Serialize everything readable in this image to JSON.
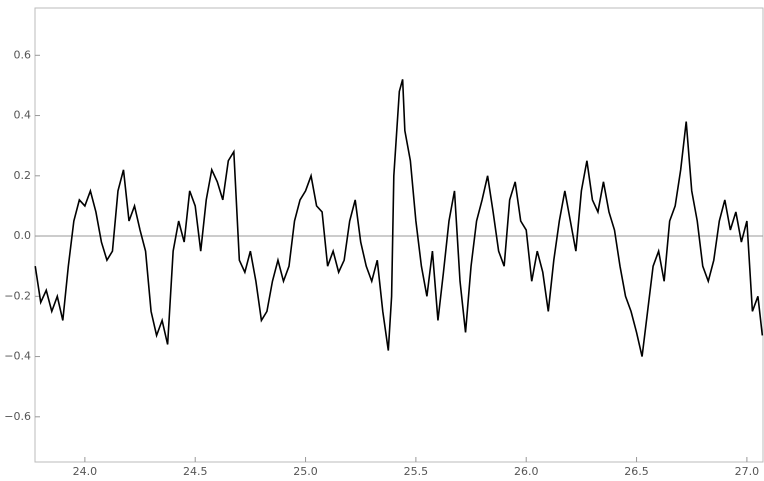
{
  "chart_data": {
    "type": "line",
    "x": [
      23.775,
      23.8,
      23.825,
      23.85,
      23.875,
      23.9,
      23.925,
      23.95,
      23.975,
      24.0,
      24.025,
      24.05,
      24.075,
      24.1,
      24.125,
      24.15,
      24.175,
      24.2,
      24.225,
      24.25,
      24.275,
      24.3,
      24.325,
      24.35,
      24.375,
      24.4,
      24.425,
      24.45,
      24.475,
      24.5,
      24.525,
      24.55,
      24.575,
      24.6,
      24.625,
      24.65,
      24.675,
      24.7,
      24.725,
      24.75,
      24.775,
      24.8,
      24.825,
      24.85,
      24.875,
      24.9,
      24.925,
      24.95,
      24.975,
      25.0,
      25.025,
      25.05,
      25.075,
      25.1,
      25.125,
      25.15,
      25.175,
      25.2,
      25.225,
      25.25,
      25.275,
      25.3,
      25.325,
      25.35,
      25.375,
      25.39,
      25.4,
      25.425,
      25.44,
      25.45,
      25.475,
      25.5,
      25.525,
      25.55,
      25.575,
      25.6,
      25.625,
      25.65,
      25.675,
      25.7,
      25.725,
      25.75,
      25.775,
      25.8,
      25.825,
      25.85,
      25.875,
      25.9,
      25.925,
      25.95,
      25.975,
      26.0,
      26.025,
      26.05,
      26.075,
      26.1,
      26.125,
      26.15,
      26.175,
      26.2,
      26.225,
      26.25,
      26.275,
      26.3,
      26.325,
      26.35,
      26.375,
      26.4,
      26.425,
      26.45,
      26.475,
      26.5,
      26.525,
      26.55,
      26.575,
      26.6,
      26.625,
      26.65,
      26.675,
      26.7,
      26.725,
      26.75,
      26.775,
      26.8,
      26.825,
      26.85,
      26.875,
      26.9,
      26.925,
      26.95,
      26.975,
      27.0,
      27.025,
      27.05,
      27.07
    ],
    "series": [
      {
        "color": "#000000",
        "values": [
          -0.1,
          -0.22,
          -0.18,
          -0.25,
          -0.2,
          -0.28,
          -0.1,
          0.05,
          0.12,
          0.1,
          0.15,
          0.08,
          -0.02,
          -0.08,
          -0.05,
          0.15,
          0.22,
          0.05,
          0.1,
          0.02,
          -0.05,
          -0.25,
          -0.33,
          -0.28,
          -0.36,
          -0.05,
          0.05,
          -0.02,
          0.15,
          0.1,
          -0.05,
          0.12,
          0.22,
          0.18,
          0.12,
          0.25,
          0.28,
          -0.08,
          -0.12,
          -0.05,
          -0.15,
          -0.28,
          -0.25,
          -0.15,
          -0.08,
          -0.15,
          -0.1,
          0.05,
          0.12,
          0.15,
          0.2,
          0.1,
          0.08,
          -0.1,
          -0.05,
          -0.12,
          -0.08,
          0.05,
          0.12,
          -0.02,
          -0.1,
          -0.15,
          -0.08,
          -0.25,
          -0.38,
          -0.2,
          0.2,
          0.48,
          0.52,
          0.35,
          0.25,
          0.05,
          -0.1,
          -0.2,
          -0.05,
          -0.28,
          -0.12,
          0.05,
          0.15,
          -0.15,
          -0.32,
          -0.1,
          0.05,
          0.12,
          0.2,
          0.08,
          -0.05,
          -0.1,
          0.12,
          0.18,
          0.05,
          0.02,
          -0.15,
          -0.05,
          -0.12,
          -0.25,
          -0.08,
          0.05,
          0.15,
          0.05,
          -0.05,
          0.15,
          0.25,
          0.12,
          0.08,
          0.18,
          0.08,
          0.02,
          -0.1,
          -0.2,
          -0.25,
          -0.32,
          -0.4,
          -0.25,
          -0.1,
          -0.05,
          -0.15,
          0.05,
          0.1,
          0.22,
          0.38,
          0.15,
          0.05,
          -0.1,
          -0.15,
          -0.08,
          0.05,
          0.12,
          0.02,
          0.08,
          -0.02,
          0.05,
          -0.25,
          -0.2,
          -0.33
        ]
      }
    ],
    "xlim": [
      23.774,
      27.073
    ],
    "ylim": [
      -0.75,
      0.757
    ],
    "xticks": [
      {
        "value": 24,
        "label": "24.0"
      },
      24.5,
      {
        "value": 25,
        "label": "25.0"
      },
      25.5,
      {
        "value": 26,
        "label": "26.0"
      },
      26.5,
      {
        "value": 27,
        "label": "27.0"
      }
    ],
    "yticks": [
      {
        "value": -0.6,
        "label": "−0.6"
      },
      {
        "value": -0.4,
        "label": "−0.4"
      },
      {
        "value": -0.2,
        "label": "−0.2"
      },
      {
        "value": 0,
        "label": "0.0"
      },
      0.2,
      0.4,
      0.6
    ]
  }
}
